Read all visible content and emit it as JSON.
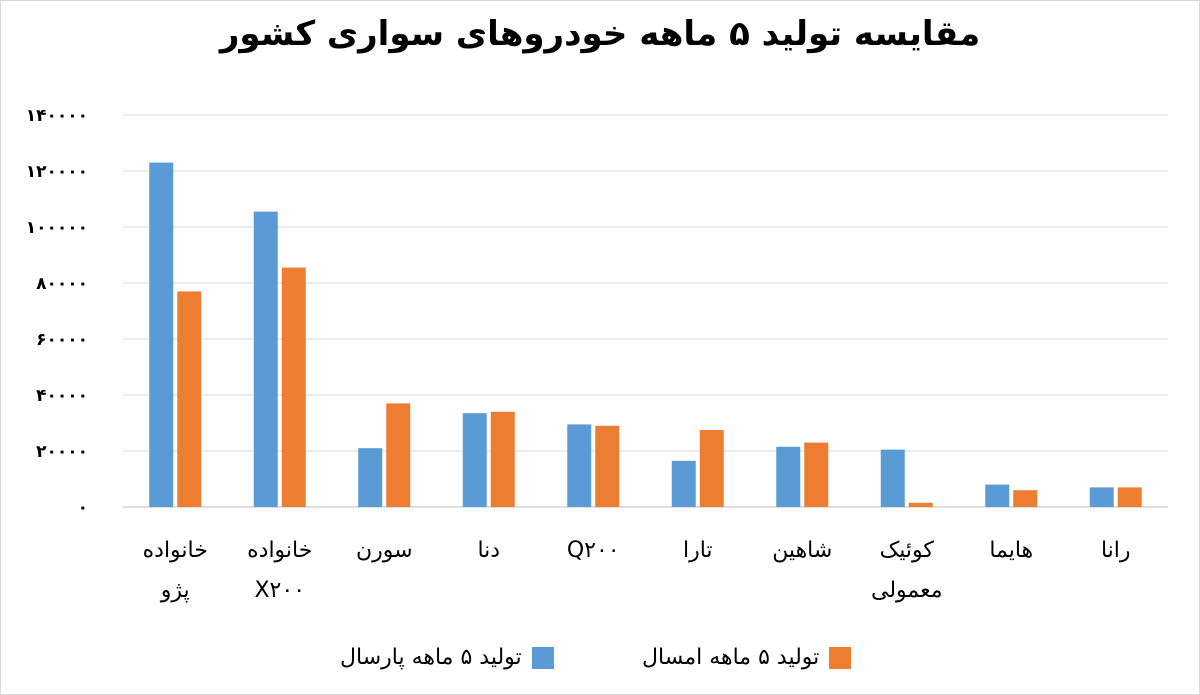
{
  "chart_data": {
    "type": "bar",
    "title": "مقایسه تولید ۵ ماهه خودروهای سواری کشور",
    "categories": [
      [
        "خانواده",
        "پژو"
      ],
      [
        "خانواده",
        "X۲۰۰"
      ],
      [
        "سورن"
      ],
      [
        "دنا"
      ],
      [
        "Q۲۰۰"
      ],
      [
        "تارا"
      ],
      [
        "شاهین"
      ],
      [
        "کوئیک",
        "معمولی"
      ],
      [
        "هایما"
      ],
      [
        "رانا"
      ]
    ],
    "series": [
      {
        "name": "تولید ۵ ماهه پارسال",
        "color": "#5b9bd5",
        "values": [
          123000,
          105500,
          21000,
          33500,
          29500,
          16500,
          21500,
          20500,
          8000,
          7000
        ]
      },
      {
        "name": "تولید ۵ ماهه امسال",
        "color": "#ed7d31",
        "values": [
          77000,
          85500,
          37000,
          34000,
          29000,
          27500,
          23000,
          1500,
          6000,
          7000
        ]
      }
    ],
    "ylim": [
      0,
      140000
    ],
    "yticks": [
      0,
      20000,
      40000,
      60000,
      80000,
      100000,
      120000,
      140000
    ],
    "ytick_labels": [
      "۰",
      "۲۰۰۰۰",
      "۴۰۰۰۰",
      "۶۰۰۰۰",
      "۸۰۰۰۰",
      "۱۰۰۰۰۰",
      "۱۲۰۰۰۰",
      "۱۴۰۰۰۰"
    ],
    "grid": true,
    "legend_position": "bottom",
    "xlabel": "",
    "ylabel": ""
  }
}
